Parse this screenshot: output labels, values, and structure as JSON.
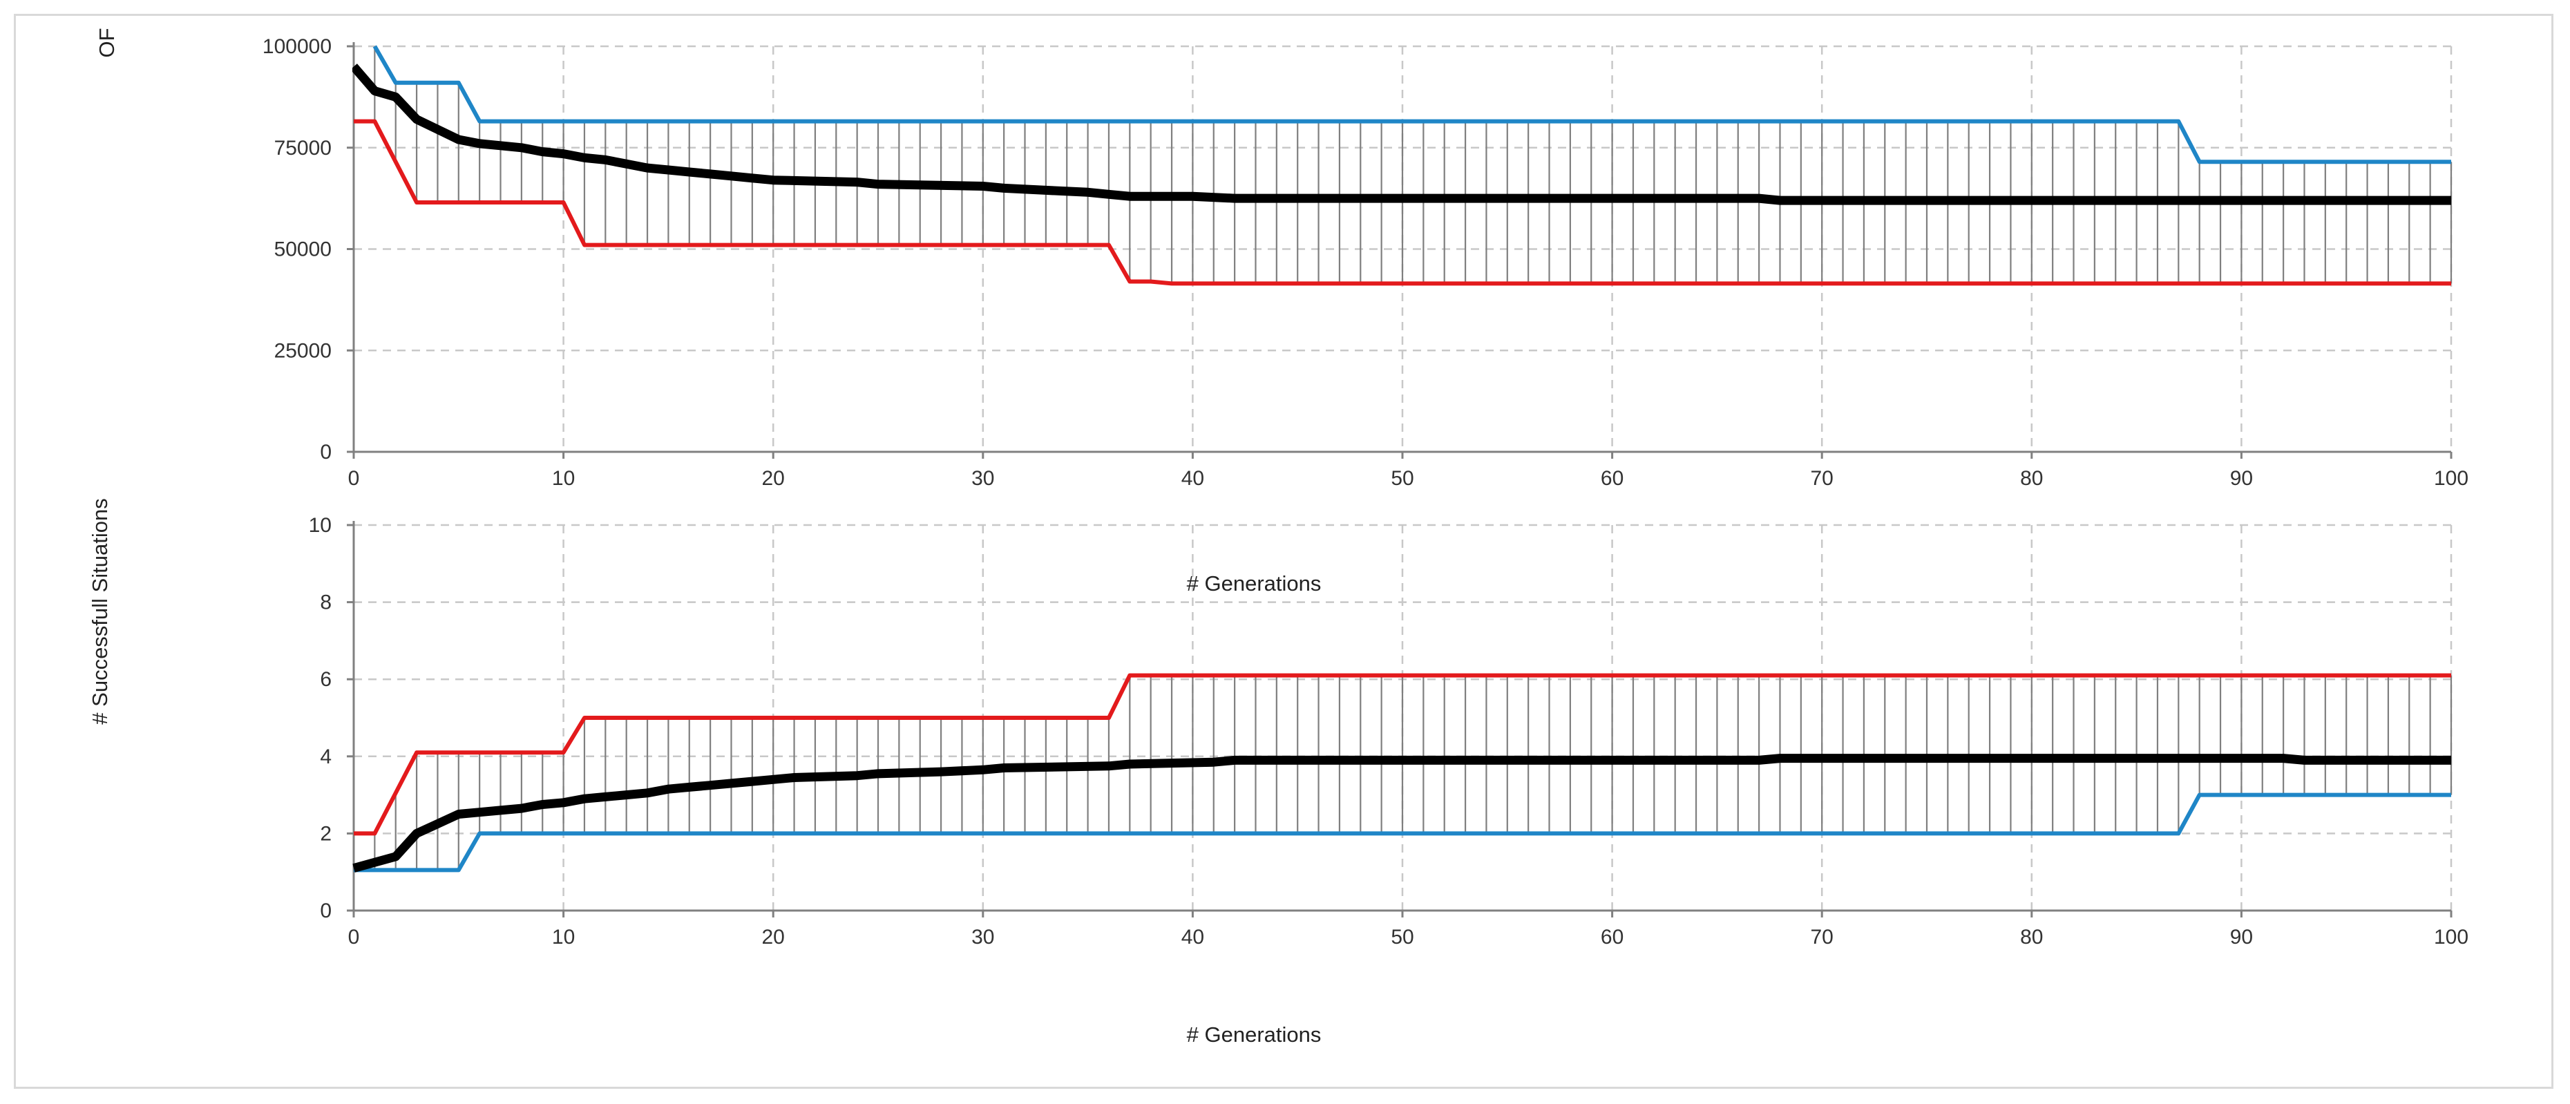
{
  "colors": {
    "best": "#e31a1c",
    "worst": "#1f86c7",
    "mean": "#000000",
    "range_hatch": "#7f7f7f",
    "grid": "#c8c8c8"
  },
  "chart_data": [
    {
      "type": "line",
      "title": "",
      "xlabel": "# Generations",
      "ylabel": "OF",
      "xlim": [
        0,
        100
      ],
      "ylim": [
        0,
        100000
      ],
      "xticks": [
        "0",
        "10",
        "20",
        "30",
        "40",
        "50",
        "60",
        "70",
        "80",
        "90",
        "100"
      ],
      "yticks": [
        "0",
        "25000",
        "50000",
        "75000",
        "100000"
      ],
      "grid": true,
      "range_hatch_between": [
        "worst",
        "best"
      ],
      "series": [
        {
          "key": "worst",
          "color": "#1f86c7",
          "points": [
            [
              1,
              100000
            ],
            [
              2,
              91000
            ],
            [
              5,
              91000
            ],
            [
              6,
              81500
            ],
            [
              87,
              81500
            ],
            [
              88,
              71500
            ],
            [
              100,
              71500
            ]
          ]
        },
        {
          "key": "best",
          "color": "#e31a1c",
          "points": [
            [
              0,
              81500
            ],
            [
              1,
              81500
            ],
            [
              3,
              61500
            ],
            [
              10,
              61500
            ],
            [
              11,
              51000
            ],
            [
              36,
              51000
            ],
            [
              37,
              42000
            ],
            [
              38,
              42000
            ],
            [
              39,
              41500
            ],
            [
              100,
              41500
            ]
          ]
        },
        {
          "key": "mean",
          "color": "#000000",
          "points": [
            [
              0,
              95000
            ],
            [
              1,
              89000
            ],
            [
              2,
              87500
            ],
            [
              3,
              82000
            ],
            [
              4,
              79500
            ],
            [
              5,
              77000
            ],
            [
              6,
              76000
            ],
            [
              7,
              75500
            ],
            [
              8,
              75000
            ],
            [
              9,
              74000
            ],
            [
              10,
              73500
            ],
            [
              11,
              72500
            ],
            [
              12,
              72000
            ],
            [
              13,
              71000
            ],
            [
              14,
              70000
            ],
            [
              15,
              69500
            ],
            [
              16,
              69000
            ],
            [
              17,
              68500
            ],
            [
              18,
              68000
            ],
            [
              19,
              67500
            ],
            [
              20,
              67000
            ],
            [
              24,
              66500
            ],
            [
              25,
              66000
            ],
            [
              30,
              65500
            ],
            [
              31,
              65000
            ],
            [
              33,
              64500
            ],
            [
              35,
              64000
            ],
            [
              36,
              63500
            ],
            [
              37,
              63000
            ],
            [
              40,
              63000
            ],
            [
              42,
              62500
            ],
            [
              67,
              62500
            ],
            [
              68,
              62000
            ],
            [
              100,
              62000
            ]
          ]
        }
      ]
    },
    {
      "type": "line",
      "title": "",
      "xlabel": "# Generations",
      "ylabel": "# Successfull Situations",
      "xlim": [
        0,
        100
      ],
      "ylim": [
        0,
        10
      ],
      "xticks": [
        "0",
        "10",
        "20",
        "30",
        "40",
        "50",
        "60",
        "70",
        "80",
        "90",
        "100"
      ],
      "yticks": [
        "0",
        "2",
        "4",
        "6",
        "8",
        "10"
      ],
      "grid": true,
      "range_hatch_between": [
        "best",
        "worst"
      ],
      "series": [
        {
          "key": "best",
          "color": "#e31a1c",
          "points": [
            [
              0,
              2
            ],
            [
              1,
              2
            ],
            [
              3,
              4.1
            ],
            [
              10,
              4.1
            ],
            [
              11,
              5
            ],
            [
              36,
              5
            ],
            [
              37,
              6.1
            ],
            [
              100,
              6.1
            ]
          ]
        },
        {
          "key": "worst",
          "color": "#1f86c7",
          "points": [
            [
              0,
              1.05
            ],
            [
              5,
              1.05
            ],
            [
              6,
              2
            ],
            [
              87,
              2
            ],
            [
              88,
              3
            ],
            [
              100,
              3
            ]
          ]
        },
        {
          "key": "mean",
          "color": "#000000",
          "points": [
            [
              0,
              1.1
            ],
            [
              2,
              1.4
            ],
            [
              3,
              2
            ],
            [
              4,
              2.25
            ],
            [
              5,
              2.5
            ],
            [
              6,
              2.55
            ],
            [
              7,
              2.6
            ],
            [
              8,
              2.65
            ],
            [
              9,
              2.75
            ],
            [
              10,
              2.8
            ],
            [
              11,
              2.9
            ],
            [
              12,
              2.95
            ],
            [
              13,
              3.0
            ],
            [
              14,
              3.05
            ],
            [
              15,
              3.15
            ],
            [
              16,
              3.2
            ],
            [
              17,
              3.25
            ],
            [
              18,
              3.3
            ],
            [
              19,
              3.35
            ],
            [
              20,
              3.4
            ],
            [
              21,
              3.45
            ],
            [
              24,
              3.5
            ],
            [
              25,
              3.55
            ],
            [
              28,
              3.6
            ],
            [
              30,
              3.65
            ],
            [
              31,
              3.7
            ],
            [
              36,
              3.75
            ],
            [
              37,
              3.8
            ],
            [
              41,
              3.85
            ],
            [
              42,
              3.9
            ],
            [
              67,
              3.9
            ],
            [
              68,
              3.95
            ],
            [
              92,
              3.95
            ],
            [
              93,
              3.9
            ],
            [
              100,
              3.9
            ]
          ]
        }
      ]
    }
  ]
}
